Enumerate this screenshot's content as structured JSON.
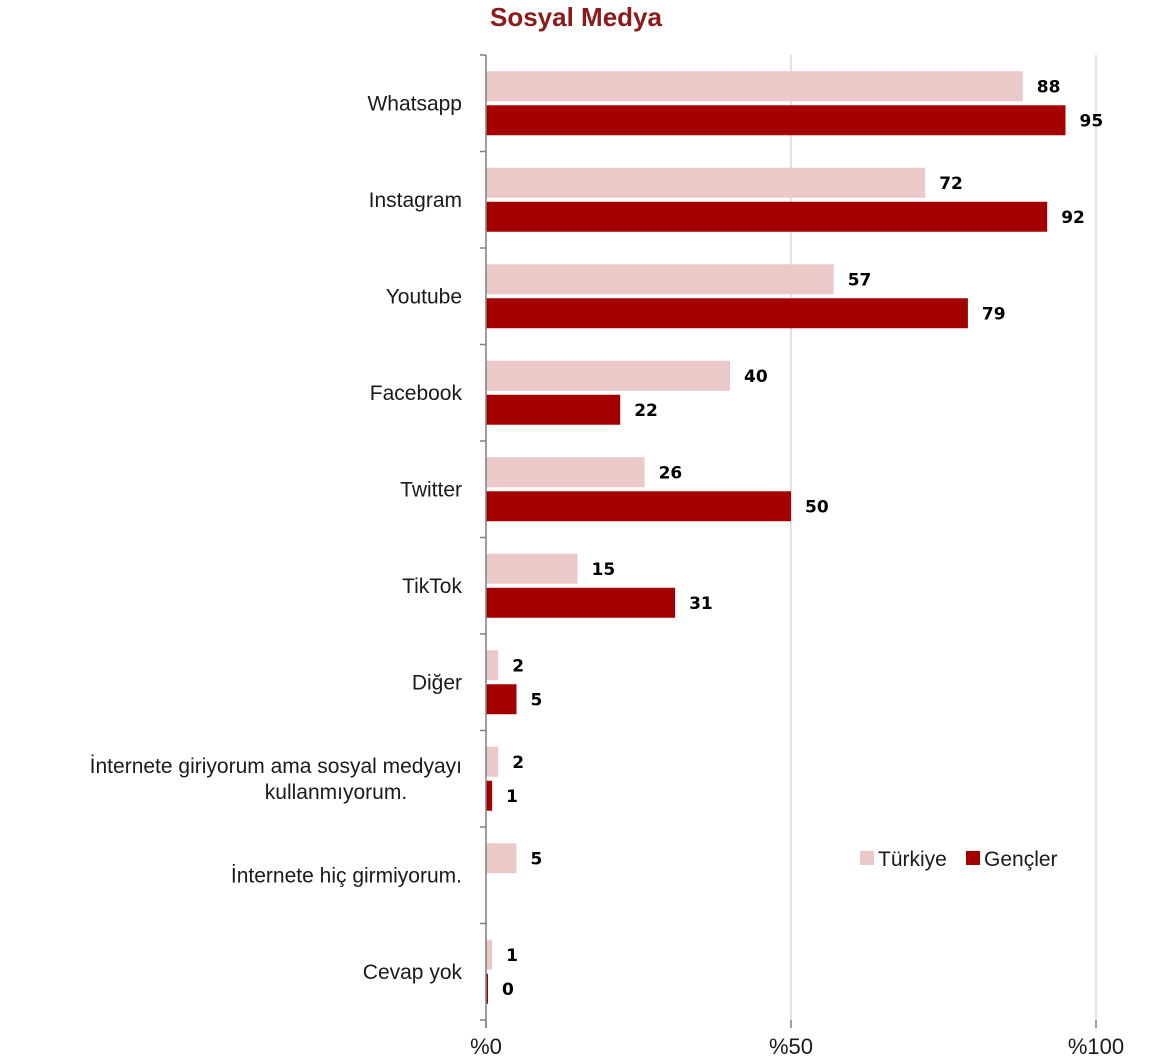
{
  "chart_data": {
    "type": "bar",
    "orientation": "horizontal",
    "title": "Sosyal Medya",
    "categories": [
      "Whatsapp",
      "Instagram",
      "Youtube",
      "Facebook",
      "Twitter",
      "TikTok",
      "Diğer",
      "İnternete giriyorum ama sosyal medyayı kullanmıyorum.",
      "İnternete hiç girmiyorum.",
      "Cevap yok"
    ],
    "category_lines": [
      [
        "Whatsapp"
      ],
      [
        "Instagram"
      ],
      [
        "Youtube"
      ],
      [
        "Facebook"
      ],
      [
        "Twitter"
      ],
      [
        "TikTok"
      ],
      [
        "Diğer"
      ],
      [
        "İnternete giriyorum ama sosyal medyayı",
        "kullanmıyorum."
      ],
      [
        "İnternete hiç girmiyorum."
      ],
      [
        "Cevap yok"
      ]
    ],
    "series": [
      {
        "name": "Türkiye",
        "color": "#ecc9c9",
        "values": [
          88,
          72,
          57,
          40,
          26,
          15,
          2,
          2,
          5,
          1
        ],
        "labels": [
          "88",
          "72",
          "57",
          "40",
          "26",
          "15",
          "2",
          "2",
          "5",
          "1"
        ]
      },
      {
        "name": "Gençler",
        "color": "#a50000",
        "values": [
          95,
          92,
          79,
          22,
          50,
          31,
          5,
          1,
          0,
          0
        ],
        "labels": [
          "95",
          "92",
          "79",
          "22",
          "50",
          "31",
          "5",
          "1",
          "",
          "0"
        ]
      }
    ],
    "xlim": [
      0,
      100
    ],
    "xticks": [
      0,
      50,
      100
    ],
    "xtick_labels": [
      "%0",
      "%50",
      "%100"
    ],
    "grid": true,
    "legend_position": "lower-right",
    "title_color": "#8b1a1a"
  }
}
